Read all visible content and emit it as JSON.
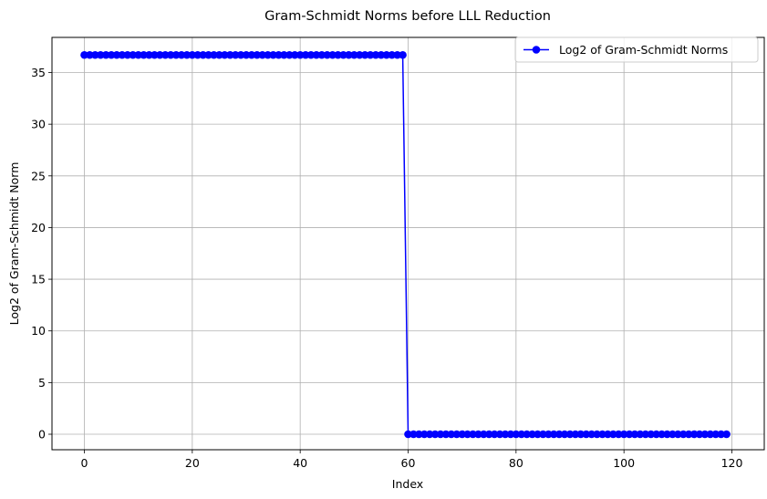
{
  "chart_data": {
    "type": "line",
    "title": "Gram-Schmidt Norms before LLL Reduction",
    "xlabel": "Index",
    "ylabel": "Log2 of Gram-Schmidt Norm",
    "xlim": [
      -6,
      126
    ],
    "ylim": [
      -1.5,
      38.4
    ],
    "xticks": [
      0,
      20,
      40,
      60,
      80,
      100,
      120
    ],
    "yticks": [
      0,
      5,
      10,
      15,
      20,
      25,
      30,
      35
    ],
    "grid": true,
    "legend_position": "top-right",
    "series": [
      {
        "name": "Log2 of Gram-Schmidt Norms",
        "color": "#0000ff",
        "marker": "circle",
        "segments": [
          {
            "x_start": 0,
            "x_end": 59,
            "y": 36.7
          },
          {
            "x_start": 60,
            "x_end": 119,
            "y": 0
          }
        ]
      }
    ]
  }
}
